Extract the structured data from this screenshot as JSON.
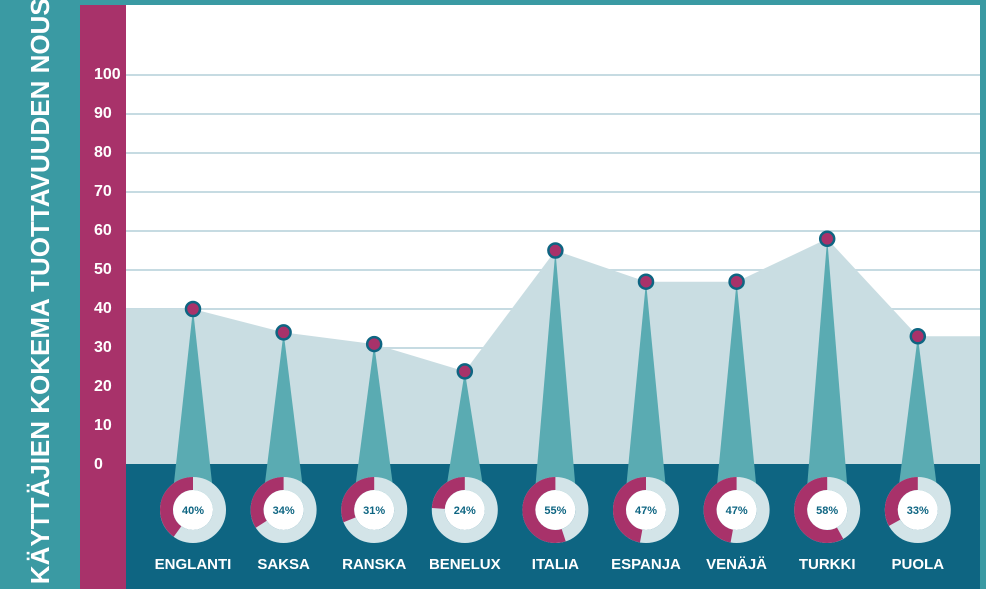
{
  "chart_data": {
    "type": "area-spike",
    "y_label": "% KÄYTTÄJIEN KOKEMA TUOTTAVUUDEN NOUSU",
    "categories": [
      "ENGLANTI",
      "SAKSA",
      "RANSKA",
      "BENELUX",
      "ITALIA",
      "ESPANJA",
      "VENÄJÄ",
      "TURKKI",
      "PUOLA"
    ],
    "values": [
      40,
      34,
      31,
      24,
      55,
      47,
      47,
      58,
      33
    ],
    "value_labels": [
      "40%",
      "34%",
      "31%",
      "24%",
      "55%",
      "47%",
      "47%",
      "58%",
      "33%"
    ],
    "ylim": [
      0,
      100
    ],
    "yticks": [
      0,
      10,
      20,
      30,
      40,
      50,
      60,
      70,
      80,
      90,
      100
    ],
    "grid": true,
    "colors": {
      "area": "#c9dde2",
      "spike": "#5aabb2",
      "point": "#a8326a",
      "donut": "#a8326a"
    }
  }
}
